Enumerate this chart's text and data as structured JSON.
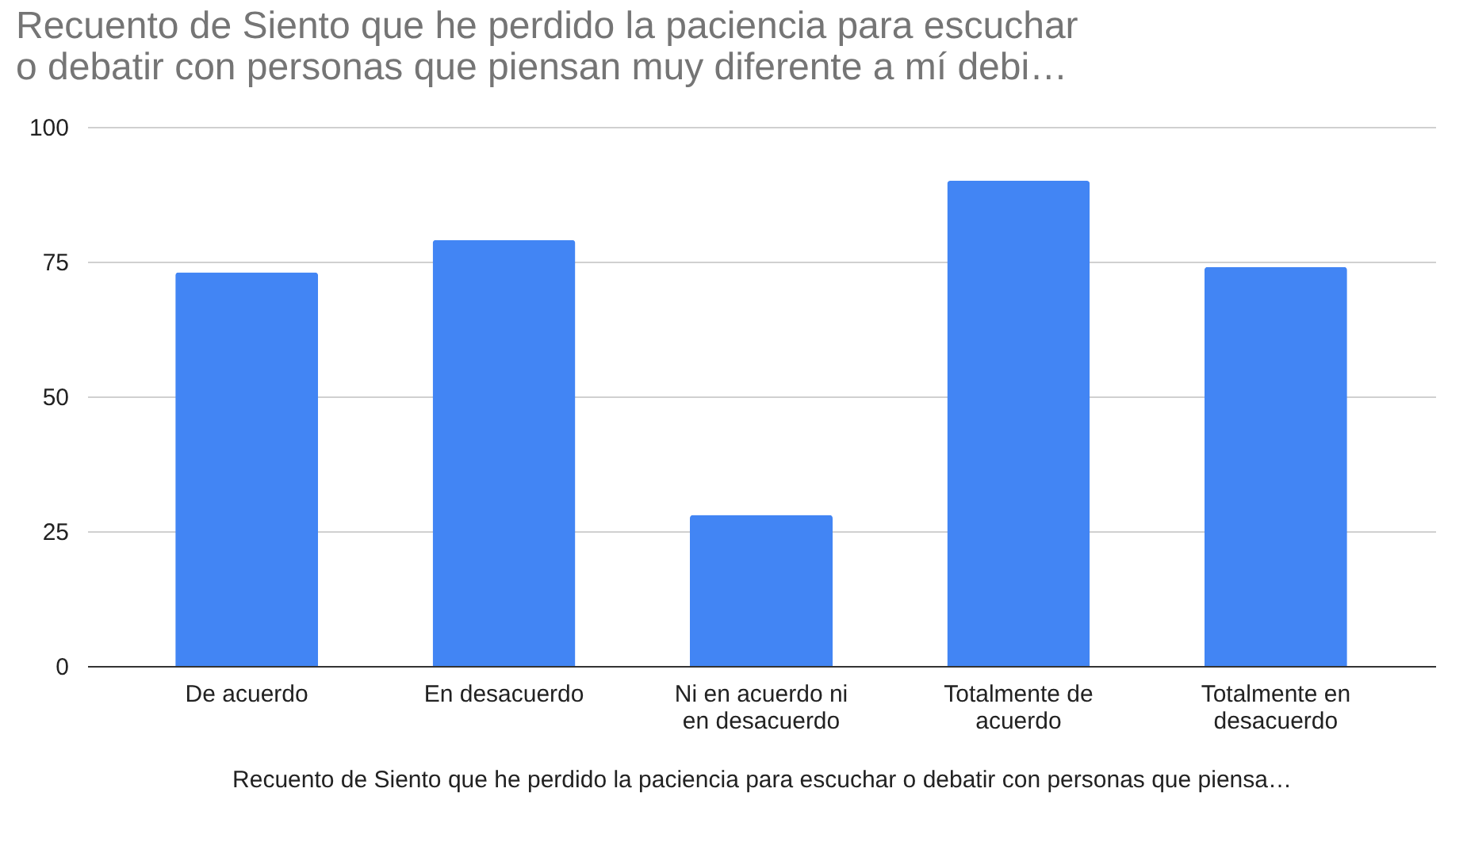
{
  "chart_data": {
    "type": "bar",
    "title": "Recuento de Siento que he perdido la paciencia para escuchar o debatir con personas que piensan muy diferente a mí debi…",
    "xlabel": "Recuento de Siento que he perdido la paciencia para escuchar o debatir con personas que piensa…",
    "categories": [
      "De acuerdo",
      "En desacuerdo",
      "Ni en acuerdo ni en desacuerdo",
      "Totalmente de acuerdo",
      "Totalmente en desacuerdo"
    ],
    "values": [
      73,
      79,
      28,
      90,
      74
    ],
    "color": "#4285f4",
    "ylim": [
      0,
      100
    ],
    "yticks": [
      0,
      25,
      50,
      75,
      100
    ],
    "grid": "y"
  }
}
